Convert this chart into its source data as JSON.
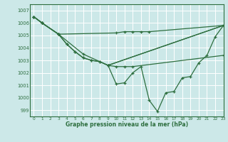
{
  "title": "Graphe pression niveau de la mer (hPa)",
  "bg_color": "#cce8e8",
  "grid_color": "#ffffff",
  "line_color": "#2d6e3e",
  "xlim": [
    -0.5,
    23
  ],
  "ylim": [
    998.5,
    1007.5
  ],
  "yticks": [
    999,
    1000,
    1001,
    1002,
    1003,
    1004,
    1005,
    1006,
    1007
  ],
  "xticks": [
    0,
    1,
    2,
    3,
    4,
    5,
    6,
    7,
    8,
    9,
    10,
    11,
    12,
    13,
    14,
    15,
    16,
    17,
    18,
    19,
    20,
    21,
    22,
    23
  ],
  "series": [
    {
      "x": [
        0,
        1,
        3,
        10,
        11,
        12,
        13,
        14,
        23
      ],
      "y": [
        1006.5,
        1006.0,
        1005.1,
        1005.2,
        1005.3,
        1005.3,
        1005.3,
        1005.3,
        1005.8
      ]
    },
    {
      "x": [
        0,
        1,
        3,
        6,
        9,
        23
      ],
      "y": [
        1006.5,
        1006.0,
        1005.1,
        1003.5,
        1002.6,
        1005.8
      ]
    },
    {
      "x": [
        0,
        1,
        3,
        4,
        5,
        6,
        7,
        8,
        9,
        23
      ],
      "y": [
        1006.5,
        1006.0,
        1005.1,
        1004.3,
        1003.7,
        1003.2,
        1003.0,
        1002.9,
        1002.6,
        1005.8
      ]
    },
    {
      "x": [
        0,
        1,
        3,
        4,
        5,
        6,
        7,
        8,
        9,
        10,
        11,
        12,
        23
      ],
      "y": [
        1006.5,
        1006.0,
        1005.1,
        1004.3,
        1003.7,
        1003.2,
        1003.0,
        1002.9,
        1002.6,
        1002.5,
        1002.5,
        1002.5,
        1003.4
      ]
    },
    {
      "x": [
        9,
        10,
        11,
        12,
        13,
        14,
        15,
        16,
        17,
        18,
        19,
        20,
        21,
        22,
        23
      ],
      "y": [
        1002.6,
        1001.1,
        1001.2,
        1002.0,
        1002.5,
        999.8,
        998.9,
        1000.4,
        1000.5,
        1001.6,
        1001.7,
        1002.8,
        1003.4,
        1004.9,
        1005.8
      ]
    }
  ]
}
